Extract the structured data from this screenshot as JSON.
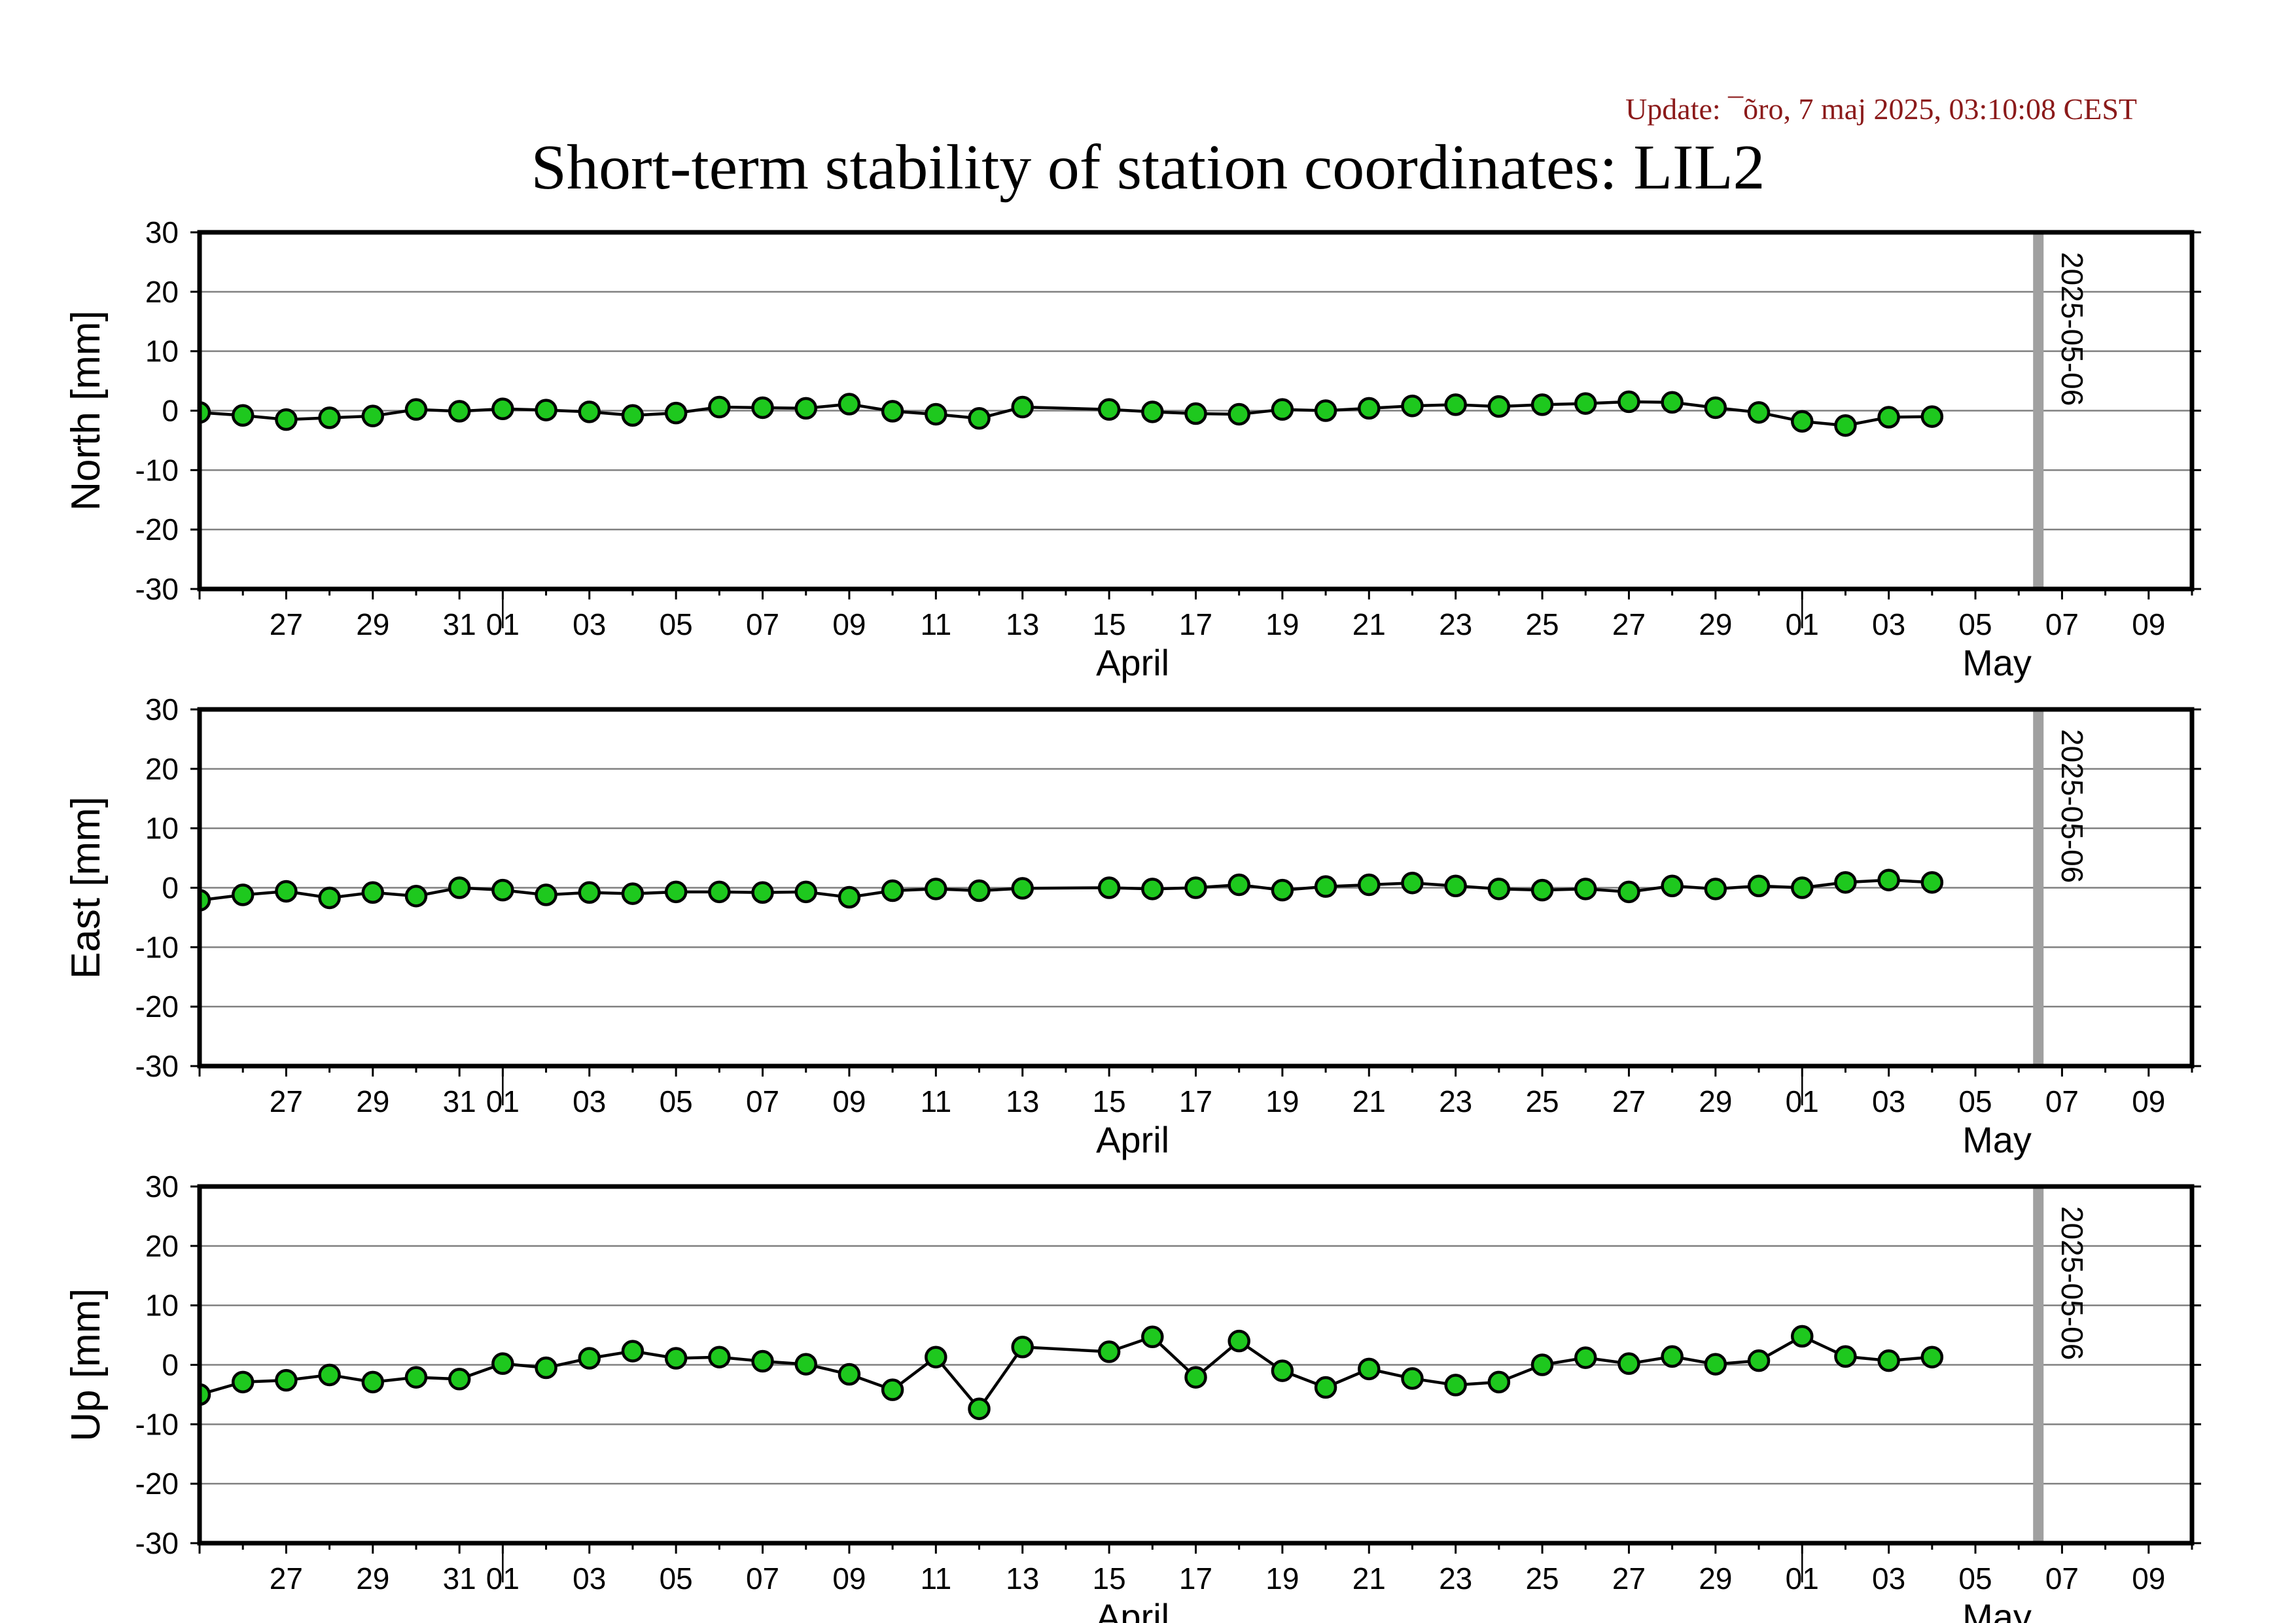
{
  "update_text": "Update: ¯õro, 7 maj 2025, 03:10:08 CEST",
  "title": "Short-term stability of station coordinates: LIL2",
  "colors": {
    "point_fill": "#1ec81e",
    "point_stroke": "#000000",
    "line": "#000000",
    "grid": "#808080",
    "marker_line": "#a0a0a0",
    "update_text": "#8b1a1a"
  },
  "chart_data": [
    {
      "type": "line",
      "ylabel": "North [mm]",
      "ylim": [
        -30,
        30
      ],
      "yticks": [
        -30,
        -20,
        -10,
        0,
        10,
        20,
        30
      ],
      "xlim": [
        "2025-03-25",
        "2025-05-10"
      ],
      "xtick_labels": [
        "27",
        "29",
        "31",
        "01",
        "03",
        "05",
        "07",
        "09",
        "11",
        "13",
        "15",
        "17",
        "19",
        "21",
        "23",
        "25",
        "27",
        "29",
        "01",
        "03",
        "05",
        "07",
        "09"
      ],
      "month_labels": [
        "April",
        "May"
      ],
      "marker_label": "2025-05-06",
      "grid": true,
      "series": [
        {
          "x": [
            "2025-03-25",
            "2025-03-26",
            "2025-03-27",
            "2025-03-28",
            "2025-03-29",
            "2025-03-30",
            "2025-03-31",
            "2025-04-01",
            "2025-04-02",
            "2025-04-03",
            "2025-04-04",
            "2025-04-05",
            "2025-04-06",
            "2025-04-07",
            "2025-04-08",
            "2025-04-09",
            "2025-04-10",
            "2025-04-11",
            "2025-04-12",
            "2025-04-13",
            "2025-04-15",
            "2025-04-16",
            "2025-04-17",
            "2025-04-18",
            "2025-04-19",
            "2025-04-20",
            "2025-04-21",
            "2025-04-22",
            "2025-04-23",
            "2025-04-24",
            "2025-04-25",
            "2025-04-26",
            "2025-04-27",
            "2025-04-28",
            "2025-04-29",
            "2025-04-30",
            "2025-05-01",
            "2025-05-02",
            "2025-05-03",
            "2025-05-04"
          ],
          "y": [
            -0.3,
            -0.8,
            -1.5,
            -1.2,
            -0.9,
            0.2,
            -0.1,
            0.3,
            0.1,
            -0.2,
            -0.8,
            -0.4,
            0.6,
            0.5,
            0.4,
            1.1,
            -0.1,
            -0.6,
            -1.3,
            0.6,
            0.2,
            -0.2,
            -0.5,
            -0.6,
            0.2,
            0.0,
            0.4,
            0.8,
            1.0,
            0.7,
            1.0,
            1.2,
            1.5,
            1.4,
            0.5,
            -0.3,
            -1.8,
            -2.5,
            -1.1,
            -1.0
          ]
        }
      ]
    },
    {
      "type": "line",
      "ylabel": "East [mm]",
      "ylim": [
        -30,
        30
      ],
      "yticks": [
        -30,
        -20,
        -10,
        0,
        10,
        20,
        30
      ],
      "xlim": [
        "2025-03-25",
        "2025-05-10"
      ],
      "xtick_labels": [
        "27",
        "29",
        "31",
        "01",
        "03",
        "05",
        "07",
        "09",
        "11",
        "13",
        "15",
        "17",
        "19",
        "21",
        "23",
        "25",
        "27",
        "29",
        "01",
        "03",
        "05",
        "07",
        "09"
      ],
      "month_labels": [
        "April",
        "May"
      ],
      "marker_label": "2025-05-06",
      "grid": true,
      "series": [
        {
          "x": [
            "2025-03-25",
            "2025-03-26",
            "2025-03-27",
            "2025-03-28",
            "2025-03-29",
            "2025-03-30",
            "2025-03-31",
            "2025-04-01",
            "2025-04-02",
            "2025-04-03",
            "2025-04-04",
            "2025-04-05",
            "2025-04-06",
            "2025-04-07",
            "2025-04-08",
            "2025-04-09",
            "2025-04-10",
            "2025-04-11",
            "2025-04-12",
            "2025-04-13",
            "2025-04-15",
            "2025-04-16",
            "2025-04-17",
            "2025-04-18",
            "2025-04-19",
            "2025-04-20",
            "2025-04-21",
            "2025-04-22",
            "2025-04-23",
            "2025-04-24",
            "2025-04-25",
            "2025-04-26",
            "2025-04-27",
            "2025-04-28",
            "2025-04-29",
            "2025-04-30",
            "2025-05-01",
            "2025-05-02",
            "2025-05-03",
            "2025-05-04"
          ],
          "y": [
            -2.1,
            -1.2,
            -0.6,
            -1.7,
            -0.8,
            -1.4,
            0.0,
            -0.4,
            -1.2,
            -0.8,
            -1.0,
            -0.7,
            -0.7,
            -0.8,
            -0.7,
            -1.6,
            -0.5,
            -0.2,
            -0.5,
            -0.1,
            0.0,
            -0.2,
            0.0,
            0.5,
            -0.4,
            0.2,
            0.5,
            0.8,
            0.3,
            -0.2,
            -0.4,
            -0.2,
            -0.7,
            0.3,
            -0.2,
            0.3,
            0.0,
            0.9,
            1.3,
            0.9
          ]
        }
      ]
    },
    {
      "type": "line",
      "ylabel": "Up [mm]",
      "ylim": [
        -30,
        30
      ],
      "yticks": [
        -30,
        -20,
        -10,
        0,
        10,
        20,
        30
      ],
      "xlim": [
        "2025-03-25",
        "2025-05-10"
      ],
      "xtick_labels": [
        "27",
        "29",
        "31",
        "01",
        "03",
        "05",
        "07",
        "09",
        "11",
        "13",
        "15",
        "17",
        "19",
        "21",
        "23",
        "25",
        "27",
        "29",
        "01",
        "03",
        "05",
        "07",
        "09"
      ],
      "month_labels": [
        "April",
        "May"
      ],
      "marker_label": "2025-05-06",
      "grid": true,
      "series": [
        {
          "x": [
            "2025-03-25",
            "2025-03-26",
            "2025-03-27",
            "2025-03-28",
            "2025-03-29",
            "2025-03-30",
            "2025-03-31",
            "2025-04-01",
            "2025-04-02",
            "2025-04-03",
            "2025-04-04",
            "2025-04-05",
            "2025-04-06",
            "2025-04-07",
            "2025-04-08",
            "2025-04-09",
            "2025-04-10",
            "2025-04-11",
            "2025-04-12",
            "2025-04-13",
            "2025-04-15",
            "2025-04-16",
            "2025-04-17",
            "2025-04-18",
            "2025-04-19",
            "2025-04-20",
            "2025-04-21",
            "2025-04-22",
            "2025-04-23",
            "2025-04-24",
            "2025-04-25",
            "2025-04-26",
            "2025-04-27",
            "2025-04-28",
            "2025-04-29",
            "2025-04-30",
            "2025-05-01",
            "2025-05-02",
            "2025-05-03",
            "2025-05-04"
          ],
          "y": [
            -5.0,
            -2.9,
            -2.6,
            -1.7,
            -2.9,
            -2.1,
            -2.4,
            0.2,
            -0.5,
            1.1,
            2.3,
            1.1,
            1.3,
            0.6,
            0.1,
            -1.6,
            -4.2,
            1.3,
            -7.4,
            3.0,
            2.2,
            4.7,
            -2.1,
            4.0,
            -1.0,
            -3.8,
            -0.7,
            -2.3,
            -3.4,
            -2.9,
            0.0,
            1.2,
            0.2,
            1.4,
            0.1,
            0.7,
            4.8,
            1.4,
            0.7,
            1.3
          ]
        }
      ]
    }
  ]
}
